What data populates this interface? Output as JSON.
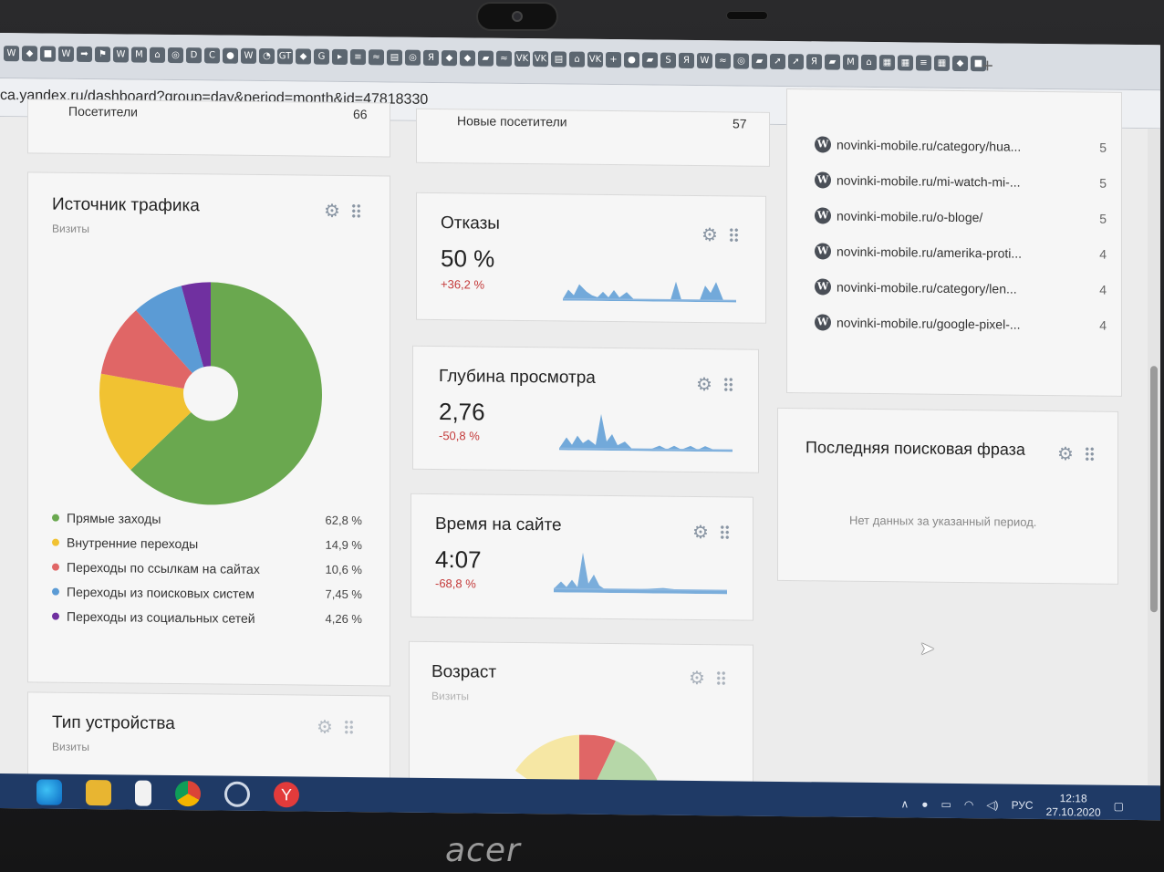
{
  "browser": {
    "url": "ca.yandex.ru/dashboard?group=day&period=month&id=47818330"
  },
  "top_cards": {
    "left_label": "Посетители",
    "left_value": "66",
    "mid_label": "Новые посетители",
    "mid_value": "57"
  },
  "traffic": {
    "title": "Источник трафика",
    "subtitle": "Визиты",
    "colors": [
      "#6aa84f",
      "#f1c232",
      "#e06666",
      "#5b9bd5",
      "#7030a0"
    ],
    "items": [
      {
        "label": "Прямые заходы",
        "value": "62,8 %",
        "share": 62.8,
        "color": "#6aa84f"
      },
      {
        "label": "Внутренние переходы",
        "value": "14,9 %",
        "share": 14.9,
        "color": "#f1c232"
      },
      {
        "label": "Переходы по ссылкам на сайтах",
        "value": "10,6 %",
        "share": 10.6,
        "color": "#e06666"
      },
      {
        "label": "Переходы из поисковых систем",
        "value": "7,45 %",
        "share": 7.45,
        "color": "#5b9bd5"
      },
      {
        "label": "Переходы из социальных сетей",
        "value": "4,26 %",
        "share": 4.26,
        "color": "#7030a0"
      }
    ]
  },
  "device": {
    "title": "Тип устройства",
    "subtitle": "Визиты"
  },
  "bounce": {
    "title": "Отказы",
    "value": "50 %",
    "delta": "+36,2 %"
  },
  "depth": {
    "title": "Глубина просмотра",
    "value": "2,76",
    "delta": "-50,8 %"
  },
  "time": {
    "title": "Время на сайте",
    "value": "4:07",
    "delta": "-68,8 %"
  },
  "age": {
    "title": "Возраст",
    "subtitle": "Визиты"
  },
  "pages": {
    "rows": [
      {
        "url": "novinki-mobile.ru/category/hua...",
        "count": "5"
      },
      {
        "url": "novinki-mobile.ru/mi-watch-mi-...",
        "count": "5"
      },
      {
        "url": "novinki-mobile.ru/o-bloge/",
        "count": "5"
      },
      {
        "url": "novinki-mobile.ru/amerika-proti...",
        "count": "4"
      },
      {
        "url": "novinki-mobile.ru/category/len...",
        "count": "4"
      },
      {
        "url": "novinki-mobile.ru/google-pixel-...",
        "count": "4"
      }
    ]
  },
  "last_search": {
    "title": "Последняя поисковая фраза",
    "empty": "Нет данных за указанный период."
  },
  "taskbar": {
    "lang": "РУС",
    "time": "12:18",
    "date": "27.10.2020"
  },
  "brand": "acer"
}
